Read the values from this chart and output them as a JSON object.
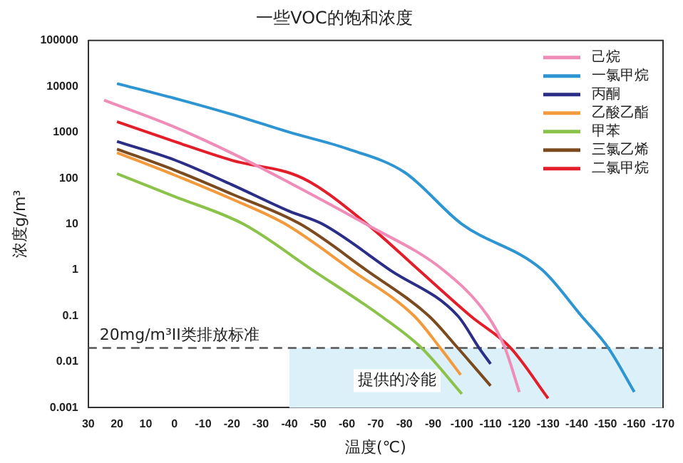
{
  "chart_data": {
    "type": "line",
    "title": "一些VOC的饱和浓度",
    "xlabel": "温度(℃)",
    "ylabel": "浓度g/m³",
    "xlim": [
      30,
      -170
    ],
    "xticks": [
      30,
      20,
      10,
      0,
      -10,
      -20,
      -30,
      -40,
      -50,
      -60,
      -70,
      -80,
      -90,
      -100,
      -110,
      -120,
      -130,
      -140,
      -150,
      -160,
      -170
    ],
    "ylim": [
      0.001,
      100000
    ],
    "yticks": [
      0.001,
      0.01,
      0.1,
      1,
      10,
      100,
      1000,
      10000,
      100000
    ],
    "log": "y",
    "grid": false,
    "legend": "top right",
    "marker": "none",
    "line_style": "solid",
    "series": [
      {
        "name": "己烷",
        "color": "#f08cb8",
        "x": [
          24.5,
          0,
          -20,
          -40,
          -66.6,
          -93.5,
          -109,
          -115,
          -120
        ],
        "values": [
          5000,
          1300,
          350,
          80,
          10,
          1,
          0.1,
          0.02,
          0.0022
        ]
      },
      {
        "name": "一氯甲烷",
        "color": "#2e95d3",
        "x": [
          20,
          0,
          -20,
          -40,
          -60,
          -80,
          -100,
          -128,
          -141.6,
          -151,
          -160
        ],
        "values": [
          11500,
          5500,
          2450,
          1000,
          440,
          135,
          10,
          1,
          0.1,
          0.02,
          0.0022
        ]
      },
      {
        "name": "丙酮",
        "color": "#2b2e86",
        "x": [
          20,
          0,
          -20,
          -40,
          -51.5,
          -75,
          -98.6,
          -106,
          -110
        ],
        "values": [
          630,
          250,
          72,
          19,
          10,
          1,
          0.1,
          0.02,
          0.009
        ]
      },
      {
        "name": "乙酸乙酯",
        "color": "#f39a3d",
        "x": [
          20,
          0,
          -20,
          -38.6,
          -61.6,
          -83.4,
          -92.5,
          -99.6
        ],
        "values": [
          360,
          117,
          35,
          10,
          1,
          0.1,
          0.02,
          0.0052
        ]
      },
      {
        "name": "甲苯",
        "color": "#8bc34a",
        "x": [
          20,
          0,
          -24,
          -48,
          -71.8,
          -86,
          -100
        ],
        "values": [
          125,
          40,
          10,
          1,
          0.1,
          0.02,
          0.002
        ]
      },
      {
        "name": "三氯乙烯",
        "color": "#7b4a1e",
        "x": [
          20,
          0,
          -20,
          -43.8,
          -66.7,
          -88.5,
          -98.6,
          -110
        ],
        "values": [
          430,
          150,
          45,
          10,
          1,
          0.1,
          0.02,
          0.003
        ]
      },
      {
        "name": "二氯甲烷",
        "color": "#e31e2a",
        "x": [
          20,
          0,
          -20,
          -44.6,
          -67,
          -85,
          -103,
          -117,
          -130
        ],
        "values": [
          1700,
          630,
          245,
          100,
          10,
          1,
          0.1,
          0.02,
          0.0016
        ]
      }
    ],
    "ref_lines": [
      {
        "axis": "y",
        "value": 0.02,
        "label": "20mg/m³II类排放标准",
        "color": "#555555",
        "line_style": "dashed"
      }
    ],
    "bands": [
      {
        "axis": "x",
        "from": -40,
        "to": -170,
        "label": "提供的冷能",
        "color": "#dcf0f9"
      }
    ]
  }
}
